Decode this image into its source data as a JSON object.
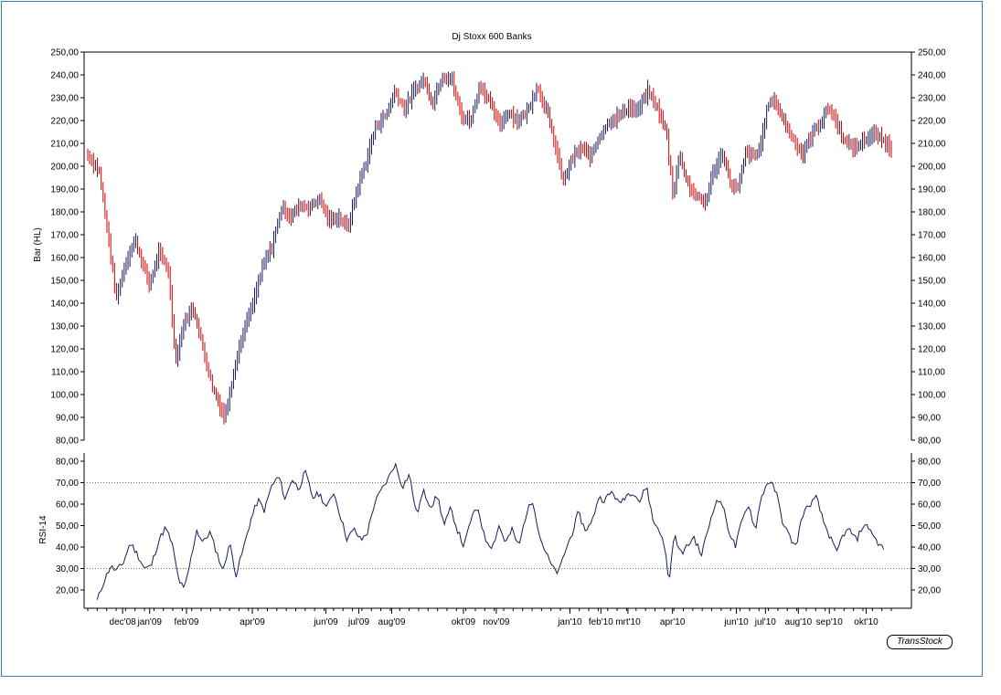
{
  "chart_data": [
    {
      "type": "bar",
      "subtype": "ohlc-high-low",
      "title": "Dj Stoxx 600 Banks",
      "ylabel": "Bar (HL)",
      "ylim": [
        80,
        250
      ],
      "yticks": [
        "80,00",
        "90,00",
        "100,00",
        "110,00",
        "120,00",
        "130,00",
        "140,00",
        "150,00",
        "160,00",
        "170,00",
        "180,00",
        "190,00",
        "200,00",
        "210,00",
        "220,00",
        "230,00",
        "240,00",
        "250,00"
      ],
      "xticks": [
        "dec'08",
        "jan'09",
        "feb'09",
        "apr'09",
        "jun'09",
        "jul'09",
        "aug'09",
        "okt'09",
        "nov'09",
        "jan'10",
        "feb'10",
        "mrt'10",
        "apr'10",
        "jun'10",
        "jul'10",
        "aug'10",
        "sep'10",
        "okt'10"
      ],
      "up_color": "#1a1a5e",
      "down_color": "#cc0000",
      "close_path": [
        {
          "t": 0.0,
          "v": 205
        },
        {
          "t": 1.2,
          "v": 198
        },
        {
          "t": 2.2,
          "v": 168
        },
        {
          "t": 3.0,
          "v": 142
        },
        {
          "t": 4.0,
          "v": 158
        },
        {
          "t": 5.0,
          "v": 168
        },
        {
          "t": 6.5,
          "v": 148
        },
        {
          "t": 7.5,
          "v": 162
        },
        {
          "t": 8.5,
          "v": 155
        },
        {
          "t": 9.3,
          "v": 115
        },
        {
          "t": 10.2,
          "v": 132
        },
        {
          "t": 11.2,
          "v": 138
        },
        {
          "t": 12.2,
          "v": 120
        },
        {
          "t": 13.2,
          "v": 103
        },
        {
          "t": 14.5,
          "v": 90
        },
        {
          "t": 15.5,
          "v": 112
        },
        {
          "t": 16.5,
          "v": 128
        },
        {
          "t": 17.5,
          "v": 140
        },
        {
          "t": 18.5,
          "v": 156
        },
        {
          "t": 19.5,
          "v": 165
        },
        {
          "t": 20.5,
          "v": 182
        },
        {
          "t": 21.5,
          "v": 178
        },
        {
          "t": 22.5,
          "v": 183
        },
        {
          "t": 23.5,
          "v": 182
        },
        {
          "t": 24.5,
          "v": 186
        },
        {
          "t": 25.5,
          "v": 176
        },
        {
          "t": 26.5,
          "v": 178
        },
        {
          "t": 27.5,
          "v": 173
        },
        {
          "t": 28.5,
          "v": 190
        },
        {
          "t": 29.5,
          "v": 203
        },
        {
          "t": 30.5,
          "v": 218
        },
        {
          "t": 31.5,
          "v": 222
        },
        {
          "t": 32.5,
          "v": 233
        },
        {
          "t": 33.5,
          "v": 225
        },
        {
          "t": 34.5,
          "v": 233
        },
        {
          "t": 35.5,
          "v": 238
        },
        {
          "t": 36.5,
          "v": 228
        },
        {
          "t": 37.5,
          "v": 240
        },
        {
          "t": 38.5,
          "v": 238
        },
        {
          "t": 39.5,
          "v": 222
        },
        {
          "t": 40.5,
          "v": 220
        },
        {
          "t": 41.5,
          "v": 236
        },
        {
          "t": 42.5,
          "v": 228
        },
        {
          "t": 43.5,
          "v": 218
        },
        {
          "t": 44.5,
          "v": 224
        },
        {
          "t": 45.5,
          "v": 220
        },
        {
          "t": 46.5,
          "v": 224
        },
        {
          "t": 47.5,
          "v": 235
        },
        {
          "t": 48.5,
          "v": 225
        },
        {
          "t": 49.5,
          "v": 208
        },
        {
          "t": 50.3,
          "v": 193
        },
        {
          "t": 51.2,
          "v": 203
        },
        {
          "t": 52.2,
          "v": 208
        },
        {
          "t": 53.2,
          "v": 204
        },
        {
          "t": 54.2,
          "v": 214
        },
        {
          "t": 55.2,
          "v": 220
        },
        {
          "t": 56.2,
          "v": 222
        },
        {
          "t": 57.2,
          "v": 226
        },
        {
          "t": 58.2,
          "v": 224
        },
        {
          "t": 59.2,
          "v": 233
        },
        {
          "t": 60.2,
          "v": 226
        },
        {
          "t": 61.2,
          "v": 215
        },
        {
          "t": 61.9,
          "v": 188
        },
        {
          "t": 62.6,
          "v": 205
        },
        {
          "t": 63.5,
          "v": 192
        },
        {
          "t": 64.5,
          "v": 186
        },
        {
          "t": 65.3,
          "v": 184
        },
        {
          "t": 66.2,
          "v": 198
        },
        {
          "t": 67.2,
          "v": 206
        },
        {
          "t": 68.0,
          "v": 192
        },
        {
          "t": 68.8,
          "v": 190
        },
        {
          "t": 69.6,
          "v": 206
        },
        {
          "t": 70.6,
          "v": 204
        },
        {
          "t": 71.2,
          "v": 210
        },
        {
          "t": 72.0,
          "v": 228
        },
        {
          "t": 72.8,
          "v": 228
        },
        {
          "t": 73.6,
          "v": 220
        },
        {
          "t": 74.6,
          "v": 212
        },
        {
          "t": 75.6,
          "v": 205
        },
        {
          "t": 76.6,
          "v": 214
        },
        {
          "t": 77.6,
          "v": 220
        },
        {
          "t": 78.4,
          "v": 226
        },
        {
          "t": 79.2,
          "v": 219
        },
        {
          "t": 80.2,
          "v": 210
        },
        {
          "t": 81.2,
          "v": 208
        },
        {
          "t": 82.2,
          "v": 212
        },
        {
          "t": 83.2,
          "v": 214
        },
        {
          "t": 84.2,
          "v": 211
        },
        {
          "t": 85.0,
          "v": 208
        }
      ]
    },
    {
      "type": "line",
      "title": "",
      "ylabel": "RSI-14",
      "ylim": [
        10,
        85
      ],
      "yticks": [
        "20,00",
        "30,00",
        "40,00",
        "50,00",
        "60,00",
        "70,00",
        "80,00"
      ],
      "reference_lines": [
        {
          "value": 70,
          "color": "#b05050"
        },
        {
          "value": 30,
          "color": "#2fa02f"
        }
      ],
      "line_color": "#1a1a5e",
      "series": [
        {
          "values_path": [
            {
              "t": 1.0,
              "v": 15
            },
            {
              "t": 1.7,
              "v": 24
            },
            {
              "t": 2.4,
              "v": 31
            },
            {
              "t": 3.0,
              "v": 29
            },
            {
              "t": 3.7,
              "v": 32
            },
            {
              "t": 4.5,
              "v": 42
            },
            {
              "t": 5.2,
              "v": 37
            },
            {
              "t": 6.0,
              "v": 30
            },
            {
              "t": 6.7,
              "v": 31
            },
            {
              "t": 7.5,
              "v": 43
            },
            {
              "t": 8.2,
              "v": 49
            },
            {
              "t": 8.9,
              "v": 42
            },
            {
              "t": 9.6,
              "v": 25
            },
            {
              "t": 10.2,
              "v": 20
            },
            {
              "t": 10.9,
              "v": 34
            },
            {
              "t": 11.5,
              "v": 48
            },
            {
              "t": 12.2,
              "v": 42
            },
            {
              "t": 12.9,
              "v": 47
            },
            {
              "t": 13.6,
              "v": 38
            },
            {
              "t": 14.3,
              "v": 29
            },
            {
              "t": 15.0,
              "v": 42
            },
            {
              "t": 15.7,
              "v": 27
            },
            {
              "t": 16.5,
              "v": 40
            },
            {
              "t": 17.2,
              "v": 52
            },
            {
              "t": 18.0,
              "v": 62
            },
            {
              "t": 18.7,
              "v": 57
            },
            {
              "t": 19.4,
              "v": 68
            },
            {
              "t": 20.2,
              "v": 73
            },
            {
              "t": 20.9,
              "v": 62
            },
            {
              "t": 21.6,
              "v": 72
            },
            {
              "t": 22.3,
              "v": 67
            },
            {
              "t": 23.0,
              "v": 75
            },
            {
              "t": 23.8,
              "v": 63
            },
            {
              "t": 24.5,
              "v": 65
            },
            {
              "t": 25.3,
              "v": 58
            },
            {
              "t": 26.0,
              "v": 66
            },
            {
              "t": 26.7,
              "v": 55
            },
            {
              "t": 27.4,
              "v": 44
            },
            {
              "t": 28.2,
              "v": 48
            },
            {
              "t": 28.9,
              "v": 43
            },
            {
              "t": 29.6,
              "v": 47
            },
            {
              "t": 30.3,
              "v": 60
            },
            {
              "t": 31.0,
              "v": 66
            },
            {
              "t": 31.8,
              "v": 72
            },
            {
              "t": 32.5,
              "v": 79
            },
            {
              "t": 33.3,
              "v": 68
            },
            {
              "t": 34.0,
              "v": 74
            },
            {
              "t": 34.8,
              "v": 55
            },
            {
              "t": 35.5,
              "v": 66
            },
            {
              "t": 36.3,
              "v": 59
            },
            {
              "t": 37.0,
              "v": 64
            },
            {
              "t": 37.7,
              "v": 50
            },
            {
              "t": 38.4,
              "v": 58
            },
            {
              "t": 39.1,
              "v": 48
            },
            {
              "t": 39.8,
              "v": 40
            },
            {
              "t": 40.6,
              "v": 54
            },
            {
              "t": 41.3,
              "v": 58
            },
            {
              "t": 42.0,
              "v": 44
            },
            {
              "t": 42.8,
              "v": 40
            },
            {
              "t": 43.5,
              "v": 50
            },
            {
              "t": 44.2,
              "v": 42
            },
            {
              "t": 44.9,
              "v": 48
            },
            {
              "t": 45.6,
              "v": 40
            },
            {
              "t": 46.4,
              "v": 56
            },
            {
              "t": 47.1,
              "v": 62
            },
            {
              "t": 47.8,
              "v": 45
            },
            {
              "t": 48.5,
              "v": 37
            },
            {
              "t": 49.2,
              "v": 30
            },
            {
              "t": 49.8,
              "v": 28
            },
            {
              "t": 50.5,
              "v": 38
            },
            {
              "t": 51.2,
              "v": 46
            },
            {
              "t": 51.9,
              "v": 56
            },
            {
              "t": 52.6,
              "v": 48
            },
            {
              "t": 53.3,
              "v": 51
            },
            {
              "t": 54.0,
              "v": 63
            },
            {
              "t": 54.7,
              "v": 62
            },
            {
              "t": 55.5,
              "v": 66
            },
            {
              "t": 56.2,
              "v": 60
            },
            {
              "t": 56.9,
              "v": 64
            },
            {
              "t": 57.7,
              "v": 66
            },
            {
              "t": 58.4,
              "v": 61
            },
            {
              "t": 59.1,
              "v": 69
            },
            {
              "t": 59.8,
              "v": 52
            },
            {
              "t": 60.5,
              "v": 48
            },
            {
              "t": 61.1,
              "v": 38
            },
            {
              "t": 61.5,
              "v": 23
            },
            {
              "t": 62.0,
              "v": 46
            },
            {
              "t": 62.7,
              "v": 37
            },
            {
              "t": 63.4,
              "v": 40
            },
            {
              "t": 64.1,
              "v": 45
            },
            {
              "t": 64.9,
              "v": 36
            },
            {
              "t": 65.6,
              "v": 48
            },
            {
              "t": 66.3,
              "v": 60
            },
            {
              "t": 67.0,
              "v": 62
            },
            {
              "t": 67.8,
              "v": 48
            },
            {
              "t": 68.5,
              "v": 40
            },
            {
              "t": 69.2,
              "v": 52
            },
            {
              "t": 69.9,
              "v": 60
            },
            {
              "t": 70.6,
              "v": 48
            },
            {
              "t": 71.3,
              "v": 64
            },
            {
              "t": 72.0,
              "v": 71
            },
            {
              "t": 72.8,
              "v": 66
            },
            {
              "t": 73.5,
              "v": 52
            },
            {
              "t": 74.2,
              "v": 45
            },
            {
              "t": 74.9,
              "v": 40
            },
            {
              "t": 75.6,
              "v": 55
            },
            {
              "t": 76.4,
              "v": 60
            },
            {
              "t": 77.1,
              "v": 63
            },
            {
              "t": 77.8,
              "v": 52
            },
            {
              "t": 78.5,
              "v": 45
            },
            {
              "t": 79.2,
              "v": 37
            },
            {
              "t": 79.9,
              "v": 46
            },
            {
              "t": 80.6,
              "v": 48
            },
            {
              "t": 81.3,
              "v": 43
            },
            {
              "t": 82.0,
              "v": 50
            },
            {
              "t": 82.7,
              "v": 49
            },
            {
              "t": 83.4,
              "v": 43
            },
            {
              "t": 84.2,
              "v": 39
            }
          ]
        }
      ]
    }
  ],
  "branding": {
    "text": "TransStock"
  }
}
